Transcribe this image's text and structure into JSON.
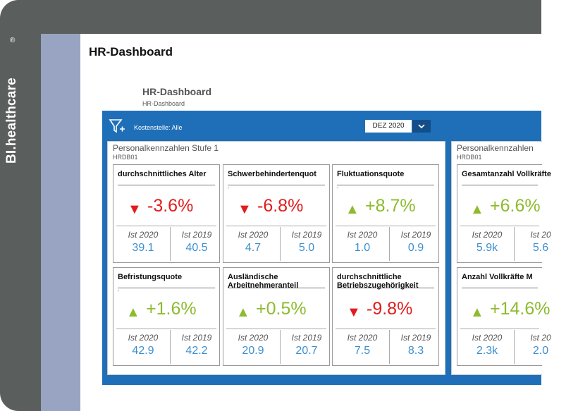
{
  "brand": {
    "name": "BI.healthcare",
    "reg": "®"
  },
  "page": {
    "title": "HR-Dashboard"
  },
  "report": {
    "title": "HR-Dashboard",
    "subtitle": "HR-Dashboard",
    "filter_label": "Kostenstelle: Alle",
    "period": "DEZ 2020",
    "colors": {
      "down": "#e21c1c",
      "up": "#8dbb2e",
      "value": "#3c8fd0",
      "bar": "#1f6fb8"
    }
  },
  "panels": [
    {
      "title": "Personalkennzahlen Stufe 1",
      "code": "HRDB01",
      "cards": [
        {
          "title": "durchschnittliches Alter",
          "dash": "",
          "trend": "down",
          "arrow": "▼",
          "pct": "-3.6%",
          "label_a": "Ist 2020",
          "value_a": "39.1",
          "label_b": "Ist 2019",
          "value_b": "40.5"
        },
        {
          "title": "Schwerbehindertenquot",
          "dash": "-",
          "trend": "down",
          "arrow": "▼",
          "pct": "-6.8%",
          "label_a": "Ist 2020",
          "value_a": "4.7",
          "label_b": "Ist 2019",
          "value_b": "5.0"
        },
        {
          "title": "Fluktuationsquote",
          "dash": "-",
          "trend": "up",
          "arrow": "▲",
          "pct": "+8.7%",
          "label_a": "Ist 2020",
          "value_a": "1.0",
          "label_b": "Ist 2019",
          "value_b": "0.9"
        },
        {
          "title": "Befristungsquote",
          "dash": "-",
          "trend": "up",
          "arrow": "▲",
          "pct": "+1.6%",
          "label_a": "Ist 2020",
          "value_a": "42.9",
          "label_b": "Ist 2019",
          "value_b": "42.2"
        },
        {
          "title": "Ausländische Arbeitnehmeranteil",
          "dash": "",
          "trend": "up",
          "arrow": "▲",
          "pct": "+0.5%",
          "label_a": "Ist 2020",
          "value_a": "20.9",
          "label_b": "Ist 2019",
          "value_b": "20.7"
        },
        {
          "title": "durchschnittliche Betriebszugehörigkeit",
          "dash": "",
          "trend": "down",
          "arrow": "▼",
          "pct": "-9.8%",
          "label_a": "Ist 2020",
          "value_a": "7.5",
          "label_b": "Ist 2019",
          "value_b": "8.3"
        }
      ]
    },
    {
      "title": "Personalkennzahlen",
      "code": "HRDB01",
      "cards": [
        {
          "title": "Gesamtanzahl Vollkräfte",
          "dash": "",
          "trend": "up",
          "arrow": "▲",
          "pct": "+6.6%",
          "label_a": "Ist 2020",
          "value_a": "5.9k",
          "label_b": "Ist 20",
          "value_b": "5.6"
        },
        {
          "title": "Anzahl Vollkräfte M",
          "dash": "",
          "trend": "up",
          "arrow": "▲",
          "pct": "+14.6%",
          "label_a": "Ist 2020",
          "value_a": "2.3k",
          "label_b": "Ist 20",
          "value_b": "2.0"
        }
      ]
    }
  ]
}
